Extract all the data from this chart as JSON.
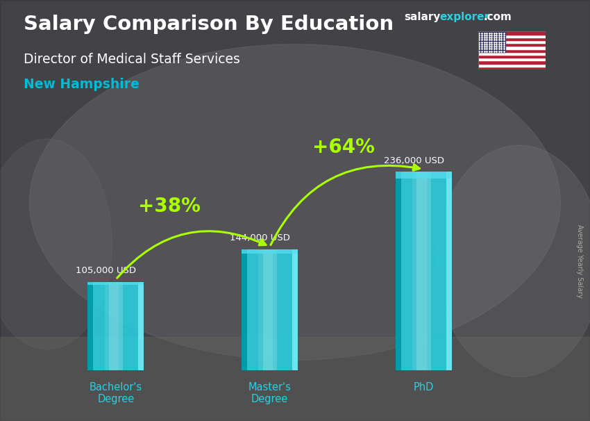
{
  "title_main": "Salary Comparison By Education",
  "subtitle1": "Director of Medical Staff Services",
  "subtitle2": "New Hampshire",
  "ylabel_right": "Average Yearly Salary",
  "categories": [
    "Bachelor's\nDegree",
    "Master's\nDegree",
    "PhD"
  ],
  "values": [
    105000,
    144000,
    236000
  ],
  "value_labels": [
    "105,000 USD",
    "144,000 USD",
    "236,000 USD"
  ],
  "pct_labels": [
    "+38%",
    "+64%"
  ],
  "bar_color_main": "#29d0e0",
  "bar_color_light": "#7aeaf5",
  "bar_color_dark": "#0099aa",
  "bar_color_top": "#55dded",
  "pct_color": "#aaff00",
  "title_color": "#ffffff",
  "subtitle1_color": "#ffffff",
  "subtitle2_color": "#00bcd4",
  "value_label_color": "#ffffff",
  "tick_label_color": "#29d0e0",
  "brand_color_salary": "#ffffff",
  "brand_color_explorer": "#29d0e0",
  "brand_color_com": "#ffffff",
  "right_label_color": "#aaaaaa",
  "figsize": [
    8.5,
    6.06
  ],
  "dpi": 100,
  "bar_width": 0.42,
  "x_positions": [
    0.7,
    1.85,
    3.0
  ],
  "xlim": [
    0.1,
    3.8
  ],
  "ylim": [
    0,
    300000
  ],
  "bg_color": "#5a5a60",
  "bg_light_color": "#888890",
  "bg_dark_color": "#3a3a3f",
  "overlay_alpha": 0.25
}
